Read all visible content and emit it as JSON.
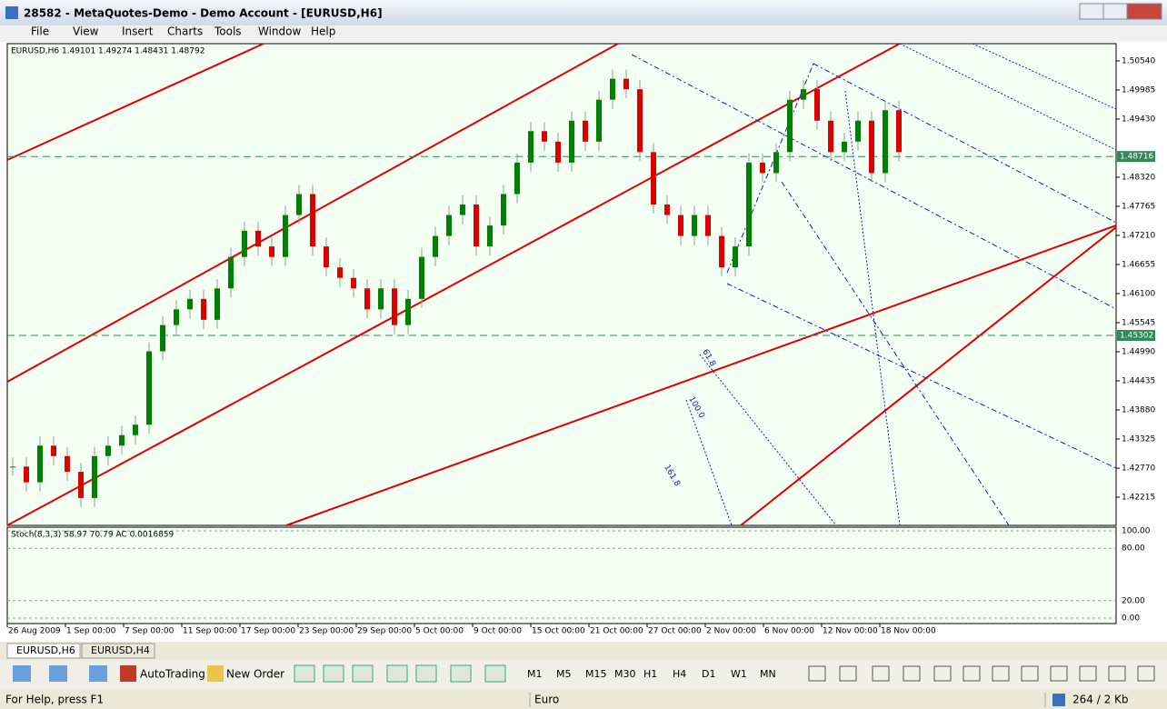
{
  "window": {
    "title": "28582 - MetaQuotes-Demo - Demo Account - [EURUSD,H6]"
  },
  "menu": [
    "File",
    "View",
    "Insert",
    "Charts",
    "Tools",
    "Window",
    "Help"
  ],
  "chart": {
    "header": "EURUSD,H6  1.49101 1.49274 1.48431 1.48792",
    "ylim": [
      1.41678,
      1.5087
    ],
    "price_ticks": [
      {
        "value": 1.5054,
        "label": "1.50540"
      },
      {
        "value": 1.49985,
        "label": "1.49985"
      },
      {
        "value": 1.4943,
        "label": "1.49430"
      },
      {
        "value": 1.4832,
        "label": "1.48320"
      },
      {
        "value": 1.47765,
        "label": "1.47765"
      },
      {
        "value": 1.4721,
        "label": "1.47210"
      },
      {
        "value": 1.46655,
        "label": "1.46655"
      },
      {
        "value": 1.461,
        "label": "1.46100"
      },
      {
        "value": 1.45545,
        "label": "1.45545"
      },
      {
        "value": 1.4499,
        "label": "1.44990"
      },
      {
        "value": 1.44435,
        "label": "1.44435"
      },
      {
        "value": 1.4388,
        "label": "1.43880"
      },
      {
        "value": 1.43325,
        "label": "1.43325"
      },
      {
        "value": 1.4277,
        "label": "1.42770"
      },
      {
        "value": 1.42215,
        "label": "1.42215"
      }
    ],
    "hlines": [
      {
        "value": 1.48716,
        "label": "1.48716"
      },
      {
        "value": 1.45302,
        "label": "1.45302"
      }
    ],
    "closes": [
      1.428,
      1.425,
      1.432,
      1.43,
      1.427,
      1.422,
      1.43,
      1.432,
      1.434,
      1.436,
      1.45,
      1.455,
      1.458,
      1.46,
      1.456,
      1.462,
      1.468,
      1.473,
      1.47,
      1.468,
      1.476,
      1.48,
      1.47,
      1.466,
      1.464,
      1.462,
      1.458,
      1.462,
      1.455,
      1.46,
      1.468,
      1.472,
      1.476,
      1.478,
      1.47,
      1.474,
      1.48,
      1.486,
      1.492,
      1.49,
      1.486,
      1.494,
      1.49,
      1.498,
      1.502,
      1.5,
      1.488,
      1.478,
      1.476,
      1.472,
      1.476,
      1.472,
      1.466,
      1.47,
      1.486,
      1.484,
      1.488,
      1.498,
      1.5,
      1.494,
      1.488,
      1.49,
      1.494,
      1.484,
      1.496,
      1.488
    ],
    "fib_labels": [
      "61.8",
      "100.0",
      "161.8"
    ],
    "dates": [
      "26 Aug 2009",
      "1 Sep 00:00",
      "7 Sep 00:00",
      "11 Sep 00:00",
      "17 Sep 00:00",
      "23 Sep 00:00",
      "29 Sep 00:00",
      "5 Oct 00:00",
      "9 Oct 00:00",
      "15 Oct 00:00",
      "21 Oct 00:00",
      "27 Oct 00:00",
      "2 Nov 00:00",
      "6 Nov 00:00",
      "12 Nov 00:00",
      "18 Nov 00:00"
    ]
  },
  "indicator": {
    "header": "Stoch(8,3,3) 58.97 70.79 AC 0.0016859",
    "ylim": [
      0,
      100
    ],
    "ticks": [
      {
        "value": 100,
        "label": "100.00"
      },
      {
        "value": 80,
        "label": "80.00"
      },
      {
        "value": 20,
        "label": "20.00"
      },
      {
        "value": 0,
        "label": "0.00"
      }
    ]
  },
  "tabs": [
    "EURUSD,H6",
    "EURUSD,H4"
  ],
  "toolbar": [
    "AutoTrading",
    "New Order"
  ],
  "timeframes": [
    "M1",
    "M5",
    "M15",
    "M30",
    "H1",
    "H4",
    "D1",
    "W1",
    "MN"
  ],
  "status": {
    "help": "For Help, press F1",
    "profile": "Euro",
    "traffic": "264 / 2 Kb"
  }
}
